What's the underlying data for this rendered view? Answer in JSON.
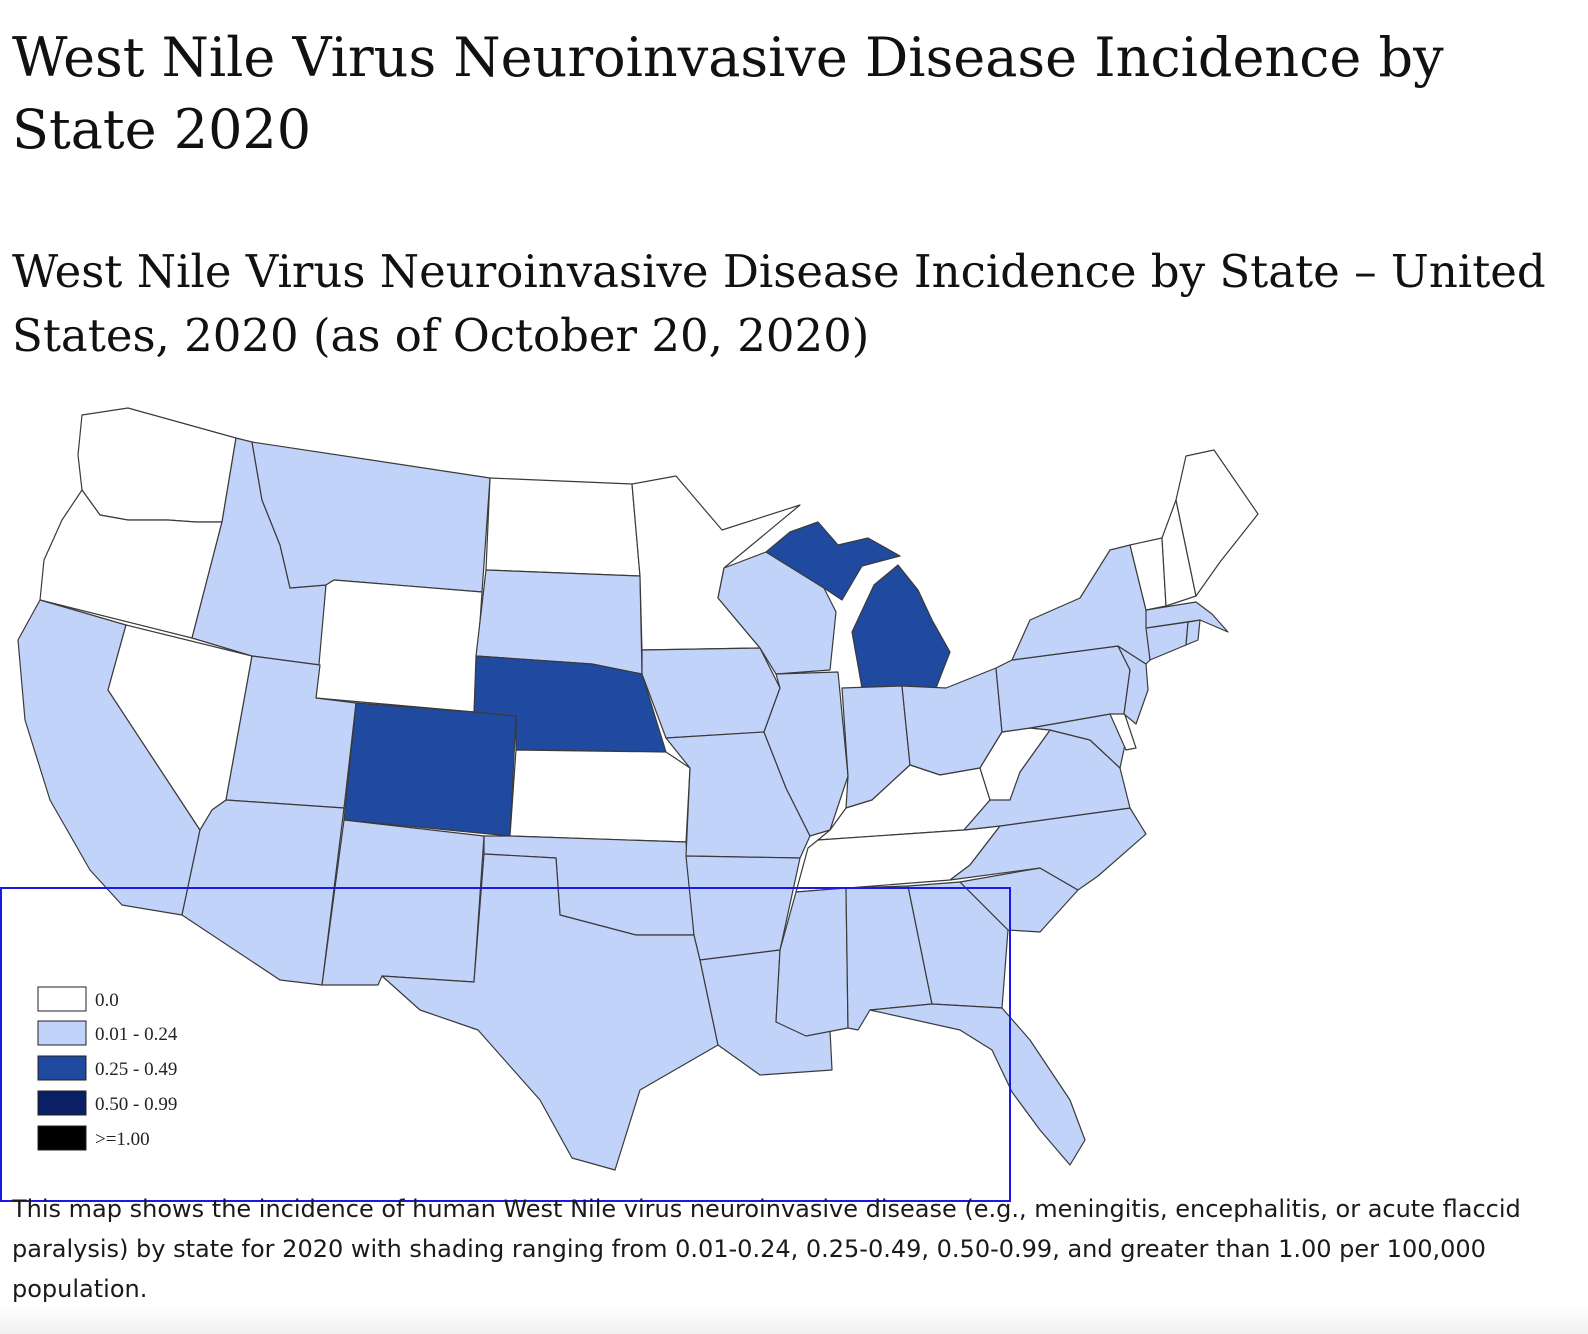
{
  "page": {
    "title": "West Nile Virus Neuroinvasive Disease Incidence by State 2020",
    "map_title": "West Nile Virus Neuroinvasive Disease Incidence by State – United States, 2020 (as of October 20, 2020)",
    "caption": "This map shows the incidence of human West Nile virus neuroinvasive disease (e.g., meningitis, encephalitis, or acute flaccid paralysis) by state for 2020 with shading ranging from 0.01-0.24, 0.25-0.49, 0.50-0.99, and greater than 1.00 per 100,000 population."
  },
  "legend": [
    {
      "label": "0.0",
      "color": "#ffffff"
    },
    {
      "label": "0.01 - 0.24",
      "color": "#c2d3fa"
    },
    {
      "label": "0.25 - 0.49",
      "color": "#1f4aa0"
    },
    {
      "label": "0.50 - 0.99",
      "color": "#0a1f64"
    },
    {
      "label": ">=1.00",
      "color": "#000000"
    }
  ],
  "map_data": {
    "type": "choropleth",
    "region": "United States",
    "year": 2020,
    "unit": "per 100,000 population",
    "states": {
      "WA": "0.0",
      "OR": "0.0",
      "NV": "0.0",
      "WY": "0.0",
      "ND": "0.0",
      "MN": "0.0",
      "KS": "0.0",
      "KY": "0.0",
      "WV": "0.0",
      "TN": "0.0",
      "VT": "0.0",
      "NH": "0.0",
      "ME": "0.0",
      "DE": "0.0",
      "CA": "0.01 - 0.24",
      "ID": "0.01 - 0.24",
      "MT": "0.01 - 0.24",
      "UT": "0.01 - 0.24",
      "AZ": "0.01 - 0.24",
      "NM": "0.01 - 0.24",
      "TX": "0.01 - 0.24",
      "OK": "0.01 - 0.24",
      "SD": "0.01 - 0.24",
      "IA": "0.01 - 0.24",
      "MO": "0.01 - 0.24",
      "AR": "0.01 - 0.24",
      "LA": "0.01 - 0.24",
      "WI": "0.01 - 0.24",
      "IL": "0.01 - 0.24",
      "IN": "0.01 - 0.24",
      "OH": "0.01 - 0.24",
      "MS": "0.01 - 0.24",
      "AL": "0.01 - 0.24",
      "GA": "0.01 - 0.24",
      "FL": "0.01 - 0.24",
      "SC": "0.01 - 0.24",
      "NC": "0.01 - 0.24",
      "VA": "0.01 - 0.24",
      "MD": "0.01 - 0.24",
      "PA": "0.01 - 0.24",
      "NY": "0.01 - 0.24",
      "NJ": "0.01 - 0.24",
      "CT": "0.01 - 0.24",
      "MA": "0.01 - 0.24",
      "RI": "0.01 - 0.24",
      "CO": "0.25 - 0.49",
      "NE": "0.25 - 0.49",
      "MI": "0.25 - 0.49"
    }
  }
}
